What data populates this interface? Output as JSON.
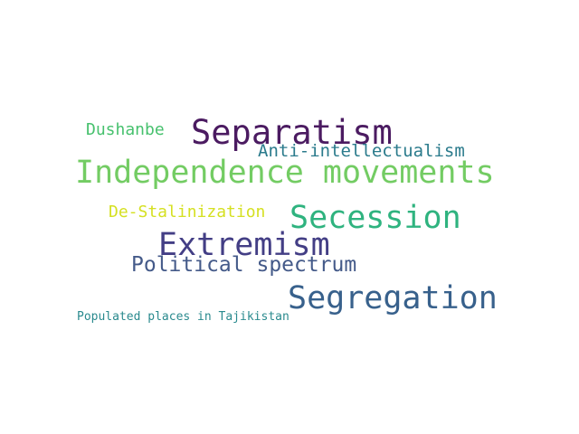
{
  "words": {
    "separatism": {
      "text": "Separatism",
      "color": "#4b1b61"
    },
    "independence": {
      "text": "Independence movements",
      "color": "#73cc63"
    },
    "secession": {
      "text": "Secession",
      "color": "#2fb37f"
    },
    "extremism": {
      "text": "Extremism",
      "color": "#433e85"
    },
    "segregation": {
      "text": "Segregation",
      "color": "#38618c"
    },
    "political": {
      "text": "Political spectrum",
      "color": "#445a89"
    },
    "anti": {
      "text": "Anti-intellectualism",
      "color": "#2b7b8c"
    },
    "destalin": {
      "text": "De-Stalinization",
      "color": "#d5e022"
    },
    "dushanbe": {
      "text": "Dushanbe",
      "color": "#47c16e"
    },
    "populated": {
      "text": "Populated places in Tajikistan",
      "color": "#2a8a8e"
    }
  }
}
